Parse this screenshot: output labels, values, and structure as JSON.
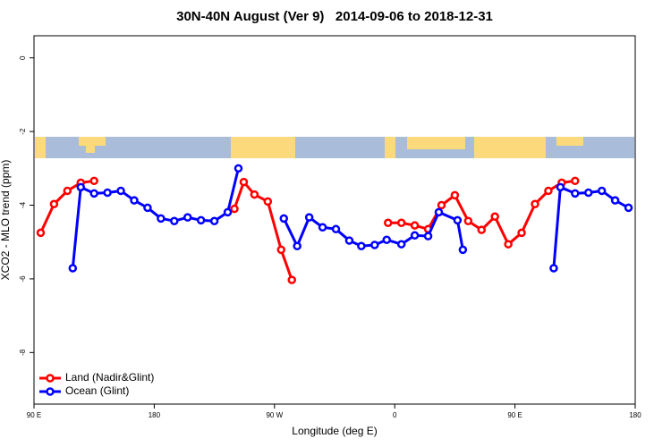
{
  "chart_data": {
    "type": "line",
    "title": "30N-40N August (Ver 9)   2014-09-06 to 2018-12-31",
    "x_label": "Longitude (deg E)",
    "y_label": "XCO2 - MLO trend (ppm)",
    "xlim": [
      90,
      540
    ],
    "xticks": [
      {
        "value": 90,
        "label": "90 E"
      },
      {
        "value": 180,
        "label": "180"
      },
      {
        "value": 270,
        "label": "90 W"
      },
      {
        "value": 360,
        "label": "0"
      },
      {
        "value": 450,
        "label": "90 E"
      },
      {
        "value": 540,
        "label": "180"
      }
    ],
    "ylim": [
      -9.4,
      0.6
    ],
    "yticks": [
      0,
      -2,
      -4,
      -6,
      -8
    ],
    "legend": "bottom-left",
    "series": [
      {
        "name": "Land (Nadir&Glint)",
        "color": "#ff0000",
        "x": [
          95,
          105,
          115,
          125,
          135,
          185,
          240,
          247,
          255,
          265,
          275,
          283,
          320,
          355,
          365,
          375,
          385,
          395,
          405,
          415,
          425,
          435,
          445,
          455,
          465,
          475,
          485,
          495
        ],
        "values": [
          -4.75,
          -3.97,
          -3.61,
          -3.39,
          -3.34,
          null,
          -4.1,
          -3.37,
          -3.71,
          -3.9,
          -5.21,
          -6.03,
          null,
          -4.48,
          -4.48,
          -4.55,
          -4.65,
          -4.0,
          -3.73,
          -4.43,
          -4.67,
          -4.31,
          -5.06,
          -4.75,
          -3.97,
          -3.61,
          -3.39,
          -3.34
        ]
      },
      {
        "name": "Ocean (Glint)",
        "color": "#0000ff",
        "x": [
          119,
          125,
          135,
          145,
          155,
          165,
          175,
          185,
          195,
          205,
          215,
          225,
          235,
          243,
          260,
          277,
          287,
          296,
          306,
          316,
          326,
          335,
          345,
          354,
          365,
          375,
          385,
          393,
          407,
          411,
          445,
          479,
          484,
          495,
          505,
          515,
          525,
          535
        ],
        "values": [
          -5.71,
          -3.51,
          -3.68,
          -3.66,
          -3.61,
          -3.87,
          -4.07,
          -4.36,
          -4.43,
          -4.33,
          -4.41,
          -4.43,
          -4.19,
          -3.0,
          null,
          -4.36,
          -5.11,
          -4.33,
          -4.6,
          -4.65,
          -4.96,
          -5.11,
          -5.08,
          -4.94,
          -5.06,
          -4.82,
          -4.84,
          -4.19,
          -4.41,
          -5.21,
          null,
          -5.71,
          -3.51,
          -3.68,
          -3.66,
          -3.61,
          -3.87,
          -4.07
        ]
      }
    ]
  }
}
